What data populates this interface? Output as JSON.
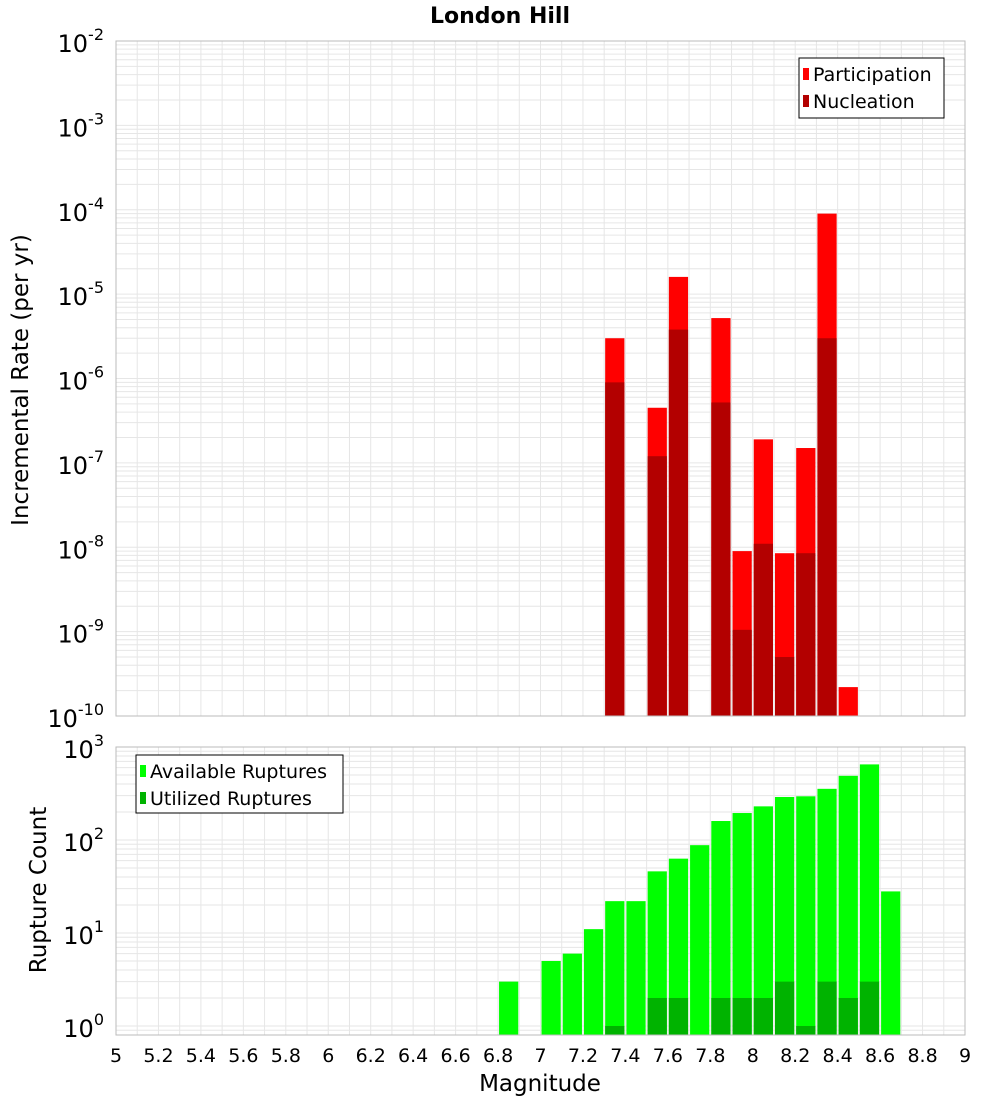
{
  "title": "London Hill",
  "xlabel": "Magnitude",
  "colors": {
    "participation": "#ff0000",
    "nucleation": "#b30000",
    "available": "#00ff00",
    "utilized": "#00b300",
    "grid": "#e6e6e6",
    "frame": "#bbbbbb"
  },
  "chart_data": [
    {
      "type": "bar",
      "subtype": "overlaid-histogram",
      "title": "London Hill",
      "xlabel": "Magnitude",
      "ylabel": "Incremental Rate (per yr)",
      "xlim": [
        5,
        9
      ],
      "ylim": [
        1e-10,
        0.01
      ],
      "yscale": "log",
      "grid": true,
      "legend_position": "top-right",
      "bin_width": 0.1,
      "y_tick_exponents": [
        "-2",
        "-3",
        "-4",
        "-5",
        "-6",
        "-7",
        "-8",
        "-9",
        "-10"
      ],
      "series": [
        {
          "name": "Participation",
          "color": "#ff0000",
          "x": [
            7.35,
            7.55,
            7.65,
            7.85,
            7.95,
            8.05,
            8.15,
            8.25,
            8.35,
            8.45
          ],
          "values": [
            3e-06,
            4.5e-07,
            1.6e-05,
            5.2e-06,
            9e-09,
            1.9e-07,
            8.5e-09,
            1.5e-07,
            9e-05,
            2.2e-10
          ]
        },
        {
          "name": "Nucleation",
          "color": "#b30000",
          "x": [
            7.35,
            7.55,
            7.65,
            7.85,
            7.95,
            8.05,
            8.15,
            8.25,
            8.35
          ],
          "values": [
            9e-07,
            1.2e-07,
            3.8e-06,
            5.2e-07,
            1.05e-09,
            1.1e-08,
            5e-10,
            8.5e-09,
            3e-06
          ]
        }
      ]
    },
    {
      "type": "bar",
      "subtype": "overlaid-histogram",
      "xlabel": "Magnitude",
      "ylabel": "Rupture Count",
      "xlim": [
        5,
        9
      ],
      "ylim": [
        0.8,
        1000
      ],
      "yscale": "log",
      "grid": true,
      "legend_position": "top-left",
      "bin_width": 0.1,
      "x_ticks": [
        "5",
        "5.2",
        "5.4",
        "5.6",
        "5.8",
        "6",
        "6.2",
        "6.4",
        "6.6",
        "6.8",
        "7",
        "7.2",
        "7.4",
        "7.6",
        "7.8",
        "8",
        "8.2",
        "8.4",
        "8.6",
        "8.8",
        "9"
      ],
      "y_tick_exponents": [
        "3",
        "2",
        "1",
        "0"
      ],
      "series": [
        {
          "name": "Available Ruptures",
          "color": "#00ff00",
          "x": [
            6.85,
            7.05,
            7.15,
            7.25,
            7.35,
            7.45,
            7.55,
            7.65,
            7.75,
            7.85,
            7.95,
            8.05,
            8.15,
            8.25,
            8.35,
            8.45,
            8.55,
            8.65
          ],
          "values": [
            3,
            5,
            6,
            11,
            22,
            22,
            46,
            63,
            88,
            160,
            195,
            230,
            290,
            295,
            355,
            490,
            650,
            28
          ]
        },
        {
          "name": "Utilized Ruptures",
          "color": "#00b300",
          "x": [
            7.35,
            7.55,
            7.65,
            7.85,
            7.95,
            8.05,
            8.15,
            8.25,
            8.35,
            8.45,
            8.55
          ],
          "values": [
            1,
            2,
            2,
            2,
            2,
            2,
            3,
            1,
            3,
            2,
            3
          ]
        }
      ]
    }
  ]
}
